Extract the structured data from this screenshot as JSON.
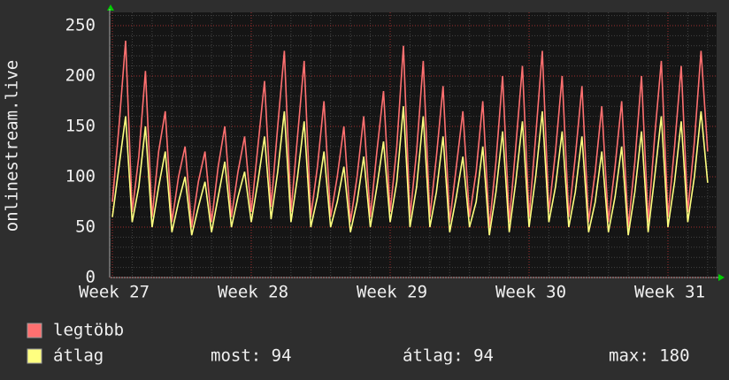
{
  "chart_data": {
    "type": "line",
    "ylabel": "onlinestream.live",
    "categories": [
      "Week 27",
      null,
      null,
      null,
      null,
      null,
      null,
      null,
      null,
      null,
      null,
      null,
      null,
      null,
      null,
      null,
      null,
      null,
      null,
      null,
      null,
      "Week 28",
      null,
      null,
      null,
      null,
      null,
      null,
      null,
      null,
      null,
      null,
      null,
      null,
      null,
      null,
      null,
      null,
      null,
      null,
      null,
      null,
      "Week 29",
      null,
      null,
      null,
      null,
      null,
      null,
      null,
      null,
      null,
      null,
      null,
      null,
      null,
      null,
      null,
      null,
      null,
      null,
      null,
      null,
      "Week 30",
      null,
      null,
      null,
      null,
      null,
      null,
      null,
      null,
      null,
      null,
      null,
      null,
      null,
      null,
      null,
      null,
      null,
      null,
      null,
      null,
      "Week 31",
      null,
      null,
      null,
      null,
      null,
      null
    ],
    "series": [
      {
        "name": "legtöbb",
        "color": "#ff7070",
        "values": [
          75,
          150,
          235,
          65,
          120,
          205,
          60,
          125,
          165,
          55,
          100,
          130,
          50,
          95,
          125,
          55,
          110,
          150,
          60,
          105,
          140,
          65,
          130,
          195,
          70,
          150,
          225,
          65,
          140,
          215,
          60,
          110,
          175,
          60,
          100,
          150,
          55,
          100,
          160,
          60,
          125,
          185,
          65,
          130,
          230,
          60,
          125,
          215,
          60,
          120,
          190,
          55,
          110,
          165,
          60,
          105,
          175,
          50,
          115,
          200,
          55,
          130,
          210,
          60,
          140,
          225,
          65,
          125,
          200,
          60,
          120,
          190,
          55,
          105,
          170,
          55,
          110,
          175,
          50,
          115,
          200,
          55,
          140,
          215,
          60,
          130,
          210,
          65,
          135,
          225,
          125
        ]
      },
      {
        "name": "átlag",
        "color": "#ffff80",
        "values": [
          60,
          110,
          160,
          55,
          90,
          150,
          50,
          90,
          125,
          45,
          75,
          100,
          42,
          70,
          95,
          45,
          80,
          115,
          50,
          80,
          105,
          55,
          95,
          140,
          58,
          105,
          165,
          55,
          100,
          155,
          50,
          80,
          125,
          50,
          75,
          110,
          45,
          75,
          120,
          50,
          90,
          135,
          55,
          95,
          170,
          50,
          90,
          160,
          50,
          85,
          140,
          45,
          80,
          120,
          50,
          75,
          130,
          42,
          85,
          145,
          45,
          95,
          155,
          50,
          100,
          165,
          55,
          90,
          145,
          50,
          85,
          140,
          45,
          75,
          125,
          45,
          80,
          130,
          42,
          85,
          145,
          45,
          100,
          160,
          50,
          95,
          155,
          55,
          100,
          165,
          94
        ]
      }
    ],
    "ylim": [
      0,
      250
    ],
    "yticks": [
      0,
      50,
      100,
      150,
      200,
      250
    ],
    "grid": true,
    "stats": [
      "most: 94",
      "átlag: 94",
      "max: 180"
    ]
  }
}
